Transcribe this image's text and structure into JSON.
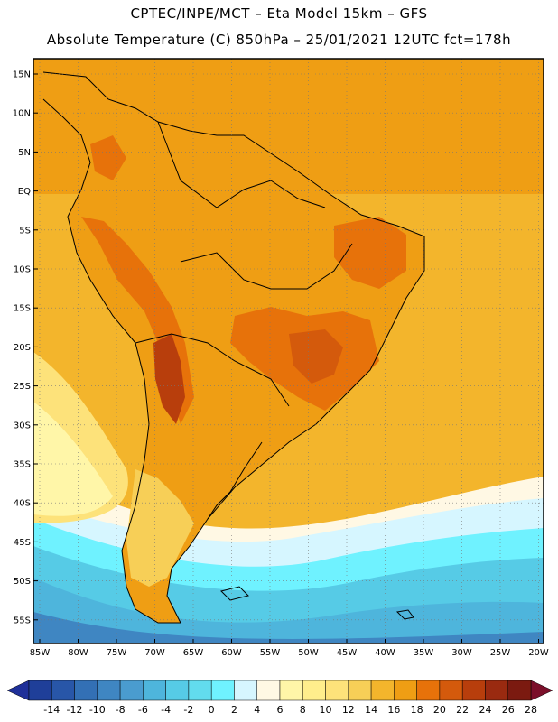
{
  "header": {
    "line1": "CPTEC/INPE/MCT –  Eta Model 15km – GFS",
    "line2": "Absolute Temperature (C) 850hPa – 25/01/2021 12UTC fct=178h"
  },
  "map": {
    "lat_labels": [
      "15N",
      "10N",
      "5N",
      "EQ",
      "5S",
      "10S",
      "15S",
      "20S",
      "25S",
      "30S",
      "35S",
      "40S",
      "45S",
      "50S",
      "55S"
    ],
    "lon_labels": [
      "85W",
      "80W",
      "75W",
      "70W",
      "65W",
      "60W",
      "55W",
      "50W",
      "45W",
      "40W",
      "35W",
      "30W",
      "25W",
      "20W"
    ]
  },
  "colorbar": {
    "ticks": [
      "-14",
      "-12",
      "-10",
      "-8",
      "-6",
      "-4",
      "-2",
      "0",
      "2",
      "4",
      "6",
      "8",
      "10",
      "12",
      "14",
      "16",
      "18",
      "20",
      "22",
      "24",
      "26",
      "28"
    ],
    "colors": [
      "#1f3f99",
      "#2856a8",
      "#3370b5",
      "#3f86c2",
      "#4a9ccf",
      "#4eb5dc",
      "#56cbe6",
      "#62dcee",
      "#6ff2ff",
      "#d6f6ff",
      "#fff8e4",
      "#fff6a8",
      "#ffee8c",
      "#fde27a",
      "#f7cf57",
      "#f3b52c",
      "#ef9e14",
      "#e7720a",
      "#d45a0c",
      "#b83e0c",
      "#9a2a10",
      "#7b1a10"
    ],
    "under_color": "#1f3099",
    "over_color": "#7b0f2a"
  }
}
